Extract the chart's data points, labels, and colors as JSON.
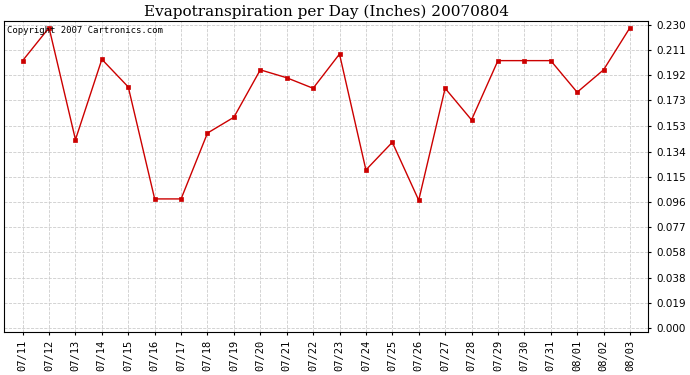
{
  "title": "Evapotranspiration per Day (Inches) 20070804",
  "copyright_text": "Copyright 2007 Cartronics.com",
  "x_labels": [
    "07/11",
    "07/12",
    "07/13",
    "07/14",
    "07/15",
    "07/16",
    "07/17",
    "07/18",
    "07/19",
    "07/20",
    "07/21",
    "07/22",
    "07/23",
    "07/24",
    "07/25",
    "07/26",
    "07/27",
    "07/28",
    "07/29",
    "07/30",
    "07/31",
    "08/01",
    "08/02",
    "08/03"
  ],
  "y_values": [
    0.203,
    0.228,
    0.143,
    0.204,
    0.183,
    0.098,
    0.098,
    0.148,
    0.16,
    0.196,
    0.19,
    0.182,
    0.208,
    0.12,
    0.141,
    0.097,
    0.182,
    0.158,
    0.203,
    0.203,
    0.203,
    0.179,
    0.196,
    0.228
  ],
  "y_ticks": [
    0.0,
    0.019,
    0.038,
    0.058,
    0.077,
    0.096,
    0.115,
    0.134,
    0.153,
    0.173,
    0.192,
    0.211,
    0.23
  ],
  "line_color": "#cc0000",
  "marker": "s",
  "marker_size": 2.5,
  "background_color": "#ffffff",
  "grid_color": "#cccccc",
  "title_fontsize": 11,
  "tick_fontsize": 7.5,
  "copyright_fontsize": 6.5,
  "ylim_min": -0.003,
  "ylim_max": 0.233
}
